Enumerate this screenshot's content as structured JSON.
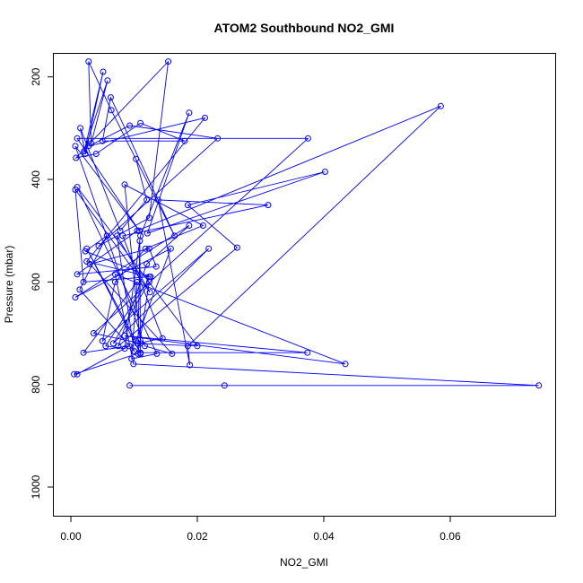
{
  "chart_data": {
    "type": "line",
    "title": "ATOM2 Southbound NO2_GMI",
    "xlabel": "NO2_GMI",
    "ylabel": "Pressure (mbar)",
    "xlim": [
      -0.0027,
      0.0766
    ],
    "ylim": [
      1056,
      155
    ],
    "y_reversed": true,
    "x_ticks": [
      0.0,
      0.02,
      0.04,
      0.06
    ],
    "x_tick_labels": [
      "0.00",
      "0.02",
      "0.04",
      "0.06"
    ],
    "y_ticks": [
      200,
      400,
      600,
      800,
      1000
    ],
    "y_tick_labels": [
      "200",
      "400",
      "600",
      "800",
      "1000"
    ],
    "grid": false,
    "legend": "none",
    "series": [
      {
        "color": "#0000ff",
        "marker": "open-circle",
        "x": [
          0.0093,
          0.0243,
          0.074,
          0.0099,
          0.007,
          0.0434,
          0.0085,
          0.0374,
          0.011,
          0.0005,
          0.001,
          0.0092,
          0.002,
          0.0105,
          0.0096,
          0.0136,
          0.001,
          0.02,
          0.0105,
          0.0145,
          0.0082,
          0.0312,
          0.0138,
          0.0188,
          0.0185,
          0.0585,
          0.0105,
          0.001,
          0.0135,
          0.0124,
          0.003,
          0.016,
          0.0117,
          0.0007,
          0.0108,
          0.001,
          0.0375,
          0.0036,
          0.011,
          0.0085,
          0.0209,
          0.0118,
          0.007,
          0.005,
          0.0218,
          0.0067,
          0.0124,
          0.0106,
          0.0109,
          0.011,
          0.0025,
          0.0103,
          0.0158,
          0.0007,
          0.0187,
          0.012,
          0.0075,
          0.0263,
          0.0185,
          0.0402,
          0.0121,
          0.0187,
          0.011,
          0.0085,
          0.0055,
          0.0126,
          0.0023,
          0.0057,
          0.0014,
          0.01,
          0.0073,
          0.0125,
          0.0007,
          0.002,
          0.0124,
          0.0025,
          0.0212,
          0.0028,
          0.0093,
          0.0232,
          0.0044,
          0.0124,
          0.0154,
          0.0008,
          0.004,
          0.011,
          0.018,
          0.005,
          0.0063,
          0.0164,
          0.0064,
          0.0028,
          0.0032,
          0.0058,
          0.0021,
          0.0051,
          0.0023,
          0.0015,
          0.0078,
          0.012,
          0.0103
        ],
        "y": [
          802,
          802,
          802,
          760,
          585,
          760,
          705,
          738,
          738,
          780,
          780,
          725,
          738,
          600,
          750,
          740,
          415,
          725,
          720,
          710,
          510,
          450,
          440,
          762,
          725,
          257,
          500,
          585,
          570,
          535,
          565,
          740,
          725,
          335,
          500,
          320,
          320,
          700,
          720,
          410,
          490,
          535,
          600,
          715,
          535,
          720,
          600,
          740,
          520,
          740,
          535,
          715,
          535,
          630,
          490,
          565,
          725,
          533,
          450,
          385,
          505,
          270,
          510,
          730,
          725,
          590,
          540,
          510,
          615,
          735,
          510,
          620,
          420,
          600,
          590,
          560,
          280,
          335,
          295,
          320,
          530,
          475,
          170,
          358,
          350,
          290,
          325,
          325,
          240,
          510,
          265,
          170,
          330,
          207,
          345,
          190,
          350,
          300,
          500,
          440,
          360
        ]
      }
    ]
  }
}
